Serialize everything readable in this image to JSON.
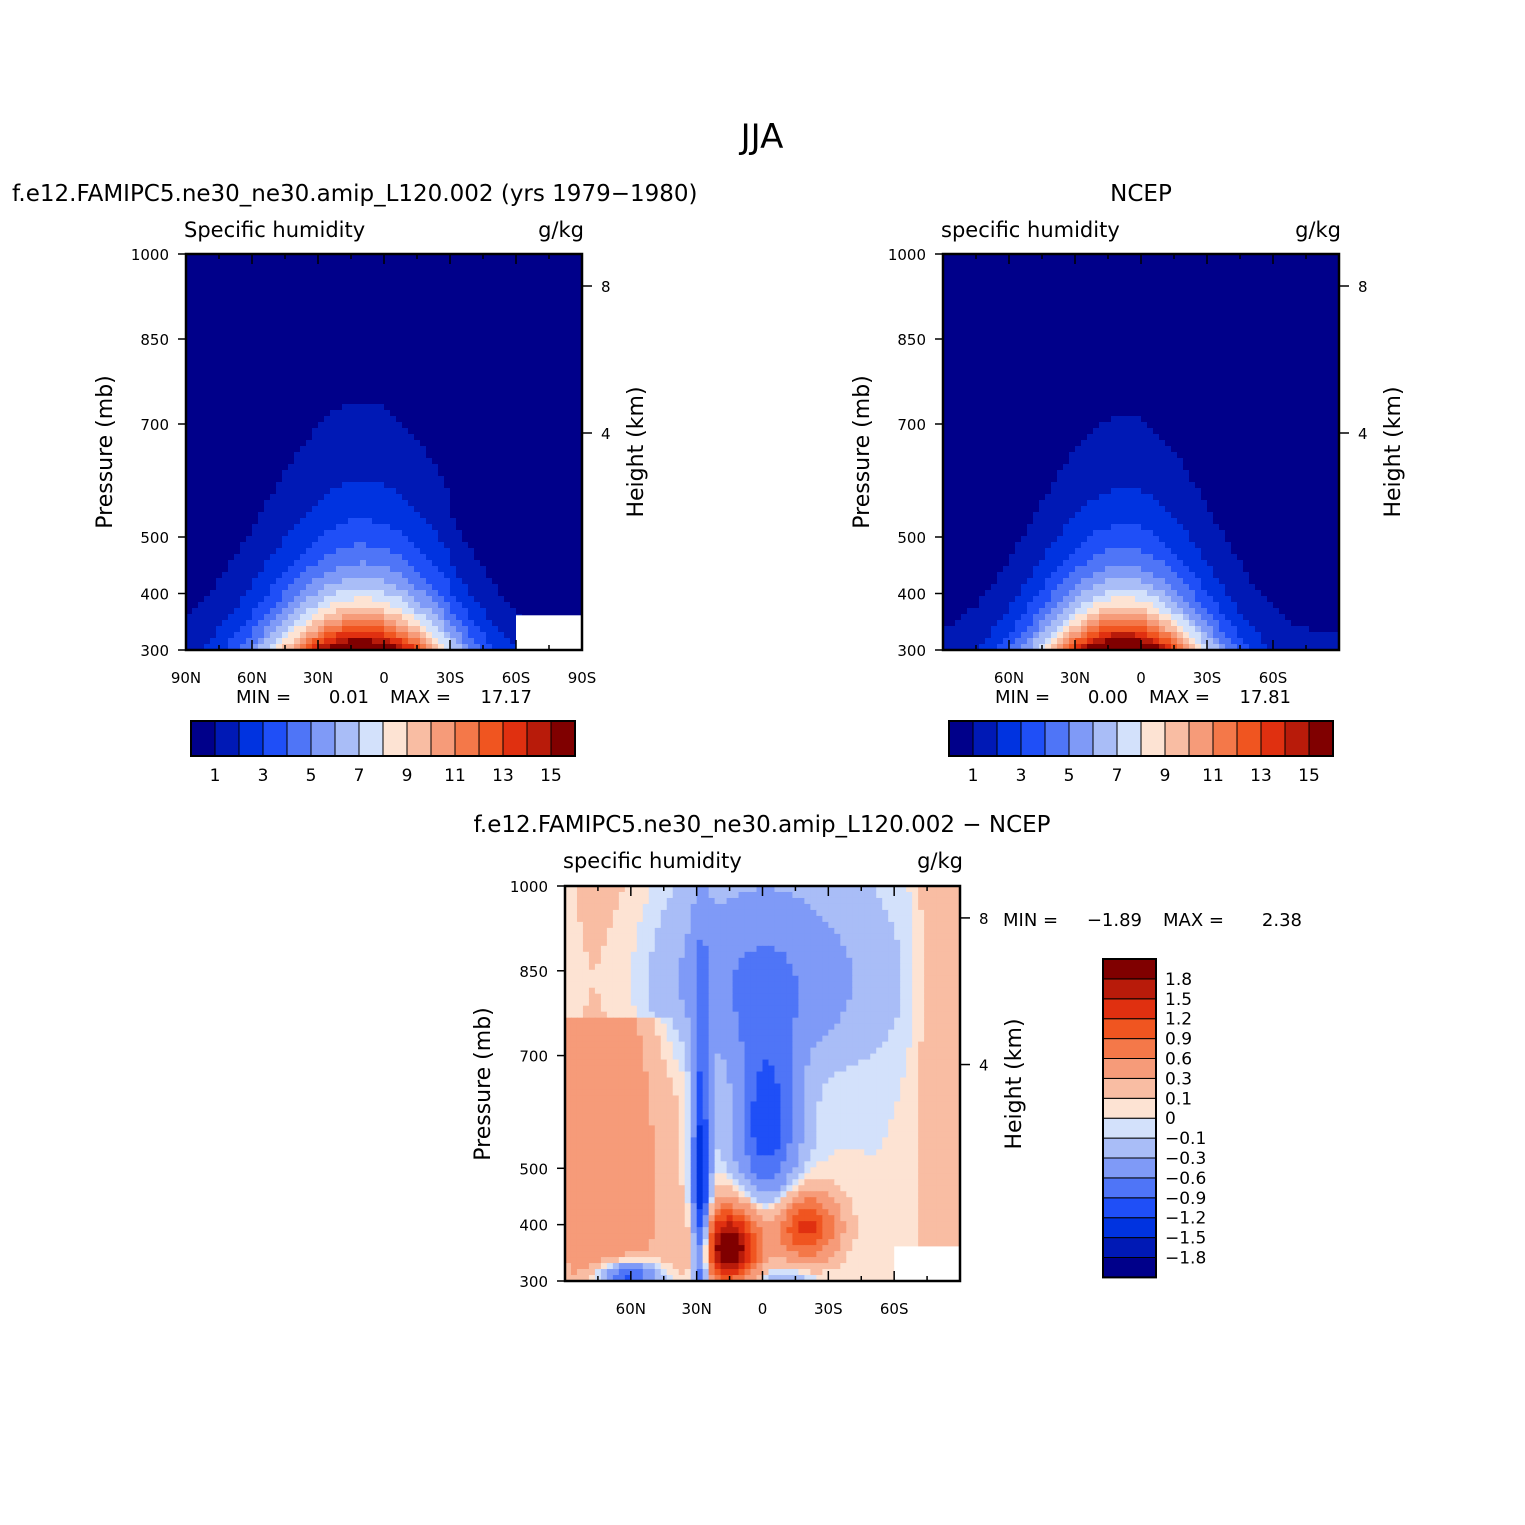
{
  "figure_title": "JJA",
  "chart_data": [
    {
      "type": "heatmap",
      "id": "model",
      "title": "f.e12.FAMIPC5.ne30_ne30.amip_L120.002 (yrs 1979−1980)",
      "left_label": "Specific humidity",
      "right_label": "g/kg",
      "ylabel": "Pressure (mb)",
      "ylabel_right": "Height (km)",
      "x_ticks": [
        "90N",
        "60N",
        "30N",
        "0",
        "30S",
        "60S",
        "90S"
      ],
      "y_ticks": [
        "300",
        "400",
        "500",
        "700",
        "850",
        "1000"
      ],
      "y_ticks_right": [
        "8",
        "4"
      ],
      "xlim": [
        90,
        -90
      ],
      "ylim": [
        1000,
        300
      ],
      "stats": {
        "min_label": "MIN =",
        "min_value": "0.01",
        "max_label": "MAX =",
        "max_value": "17.17"
      },
      "levels": [
        1,
        2,
        3,
        4,
        5,
        6,
        7,
        8,
        9,
        10,
        11,
        12,
        13,
        14,
        15
      ],
      "colorbar_labels": [
        "1",
        "3",
        "5",
        "7",
        "9",
        "11",
        "13",
        "15"
      ],
      "field": {
        "peak_lat": 10,
        "peak_value": 17.2,
        "lat_width": 30,
        "scale_height_mb": 180,
        "missing_region": "60S-90S below 900mb"
      },
      "colors": [
        "#00008a",
        "#0019b5",
        "#0033e0",
        "#1f4ff7",
        "#4f75f7",
        "#7f9af7",
        "#a9bdf7",
        "#d3e1fb",
        "#fde3d3",
        "#f9bda3",
        "#f69b79",
        "#f47849",
        "#f05520",
        "#e03010",
        "#b81b0a",
        "#800000"
      ]
    },
    {
      "type": "heatmap",
      "id": "ncep",
      "title": "NCEP",
      "left_label": "specific humidity",
      "right_label": "g/kg",
      "ylabel": "Pressure (mb)",
      "ylabel_right": "Height (km)",
      "x_ticks": [
        "60N",
        "30N",
        "0",
        "30S",
        "60S"
      ],
      "y_ticks": [
        "300",
        "400",
        "500",
        "700",
        "850",
        "1000"
      ],
      "y_ticks_right": [
        "8",
        "4"
      ],
      "xlim": [
        90,
        -90
      ],
      "ylim": [
        1000,
        300
      ],
      "stats": {
        "min_label": "MIN =",
        "min_value": "0.00",
        "max_label": "MAX =",
        "max_value": "17.81"
      },
      "levels": [
        1,
        2,
        3,
        4,
        5,
        6,
        7,
        8,
        9,
        10,
        11,
        12,
        13,
        14,
        15
      ],
      "colorbar_labels": [
        "1",
        "3",
        "5",
        "7",
        "9",
        "11",
        "13",
        "15"
      ],
      "field": {
        "peak_lat": 10,
        "peak_value": 17.8,
        "lat_width": 28,
        "scale_height_mb": 175
      },
      "colors": [
        "#00008a",
        "#0019b5",
        "#0033e0",
        "#1f4ff7",
        "#4f75f7",
        "#7f9af7",
        "#a9bdf7",
        "#d3e1fb",
        "#fde3d3",
        "#f9bda3",
        "#f69b79",
        "#f47849",
        "#f05520",
        "#e03010",
        "#b81b0a",
        "#800000"
      ]
    },
    {
      "type": "heatmap",
      "id": "difference",
      "title": "f.e12.FAMIPC5.ne30_ne30.amip_L120.002 − NCEP",
      "left_label": "specific humidity",
      "right_label": "g/kg",
      "ylabel": "Pressure (mb)",
      "ylabel_right": "Height (km)",
      "x_ticks": [
        "60N",
        "30N",
        "0",
        "30S",
        "60S"
      ],
      "y_ticks": [
        "300",
        "400",
        "500",
        "700",
        "850",
        "1000"
      ],
      "y_ticks_right": [
        "8",
        "4"
      ],
      "xlim": [
        90,
        -90
      ],
      "ylim": [
        1000,
        300
      ],
      "stats": {
        "min_label": "MIN =",
        "min_value": "−1.89",
        "max_label": "MAX =",
        "max_value": "2.38"
      },
      "levels": [
        -1.8,
        -1.5,
        -1.2,
        -0.9,
        -0.6,
        -0.3,
        -0.1,
        0,
        0.1,
        0.3,
        0.6,
        0.9,
        1.2,
        1.5,
        1.8
      ],
      "colorbar_labels": [
        "1.8",
        "1.5",
        "1.2",
        "0.9",
        "0.6",
        "0.3",
        "0.1",
        "0",
        "−0.1",
        "−0.3",
        "−0.6",
        "−0.9",
        "−1.2",
        "−1.5",
        "−1.8"
      ],
      "field": {
        "missing_region": "60S-90S below 900mb"
      },
      "colors": [
        "#00008a",
        "#0019b5",
        "#0033e0",
        "#1f4ff7",
        "#4f75f7",
        "#7f9af7",
        "#a9bdf7",
        "#d3e1fb",
        "#fde3d3",
        "#f9bda3",
        "#f69b79",
        "#f47849",
        "#f05520",
        "#e03010",
        "#b81b0a",
        "#800000"
      ]
    }
  ]
}
